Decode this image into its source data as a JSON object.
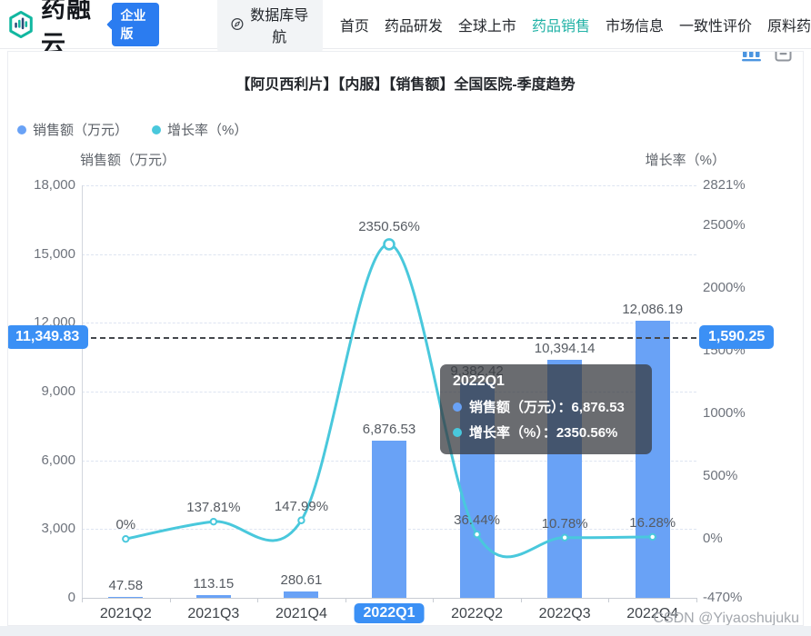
{
  "navbar": {
    "brand": "药融云",
    "badge": "企业版",
    "db_nav": "数据库导航",
    "items": [
      {
        "label": "首页",
        "active": false
      },
      {
        "label": "药品研发",
        "active": false
      },
      {
        "label": "全球上市",
        "active": false
      },
      {
        "label": "药品销售",
        "active": true
      },
      {
        "label": "市场信息",
        "active": false
      },
      {
        "label": "一致性评价",
        "active": false
      },
      {
        "label": "原料药",
        "active": false
      }
    ]
  },
  "chart": {
    "title": "【阿贝西利片】【内服】【销售额】全国医院-季度趋势",
    "legend": [
      {
        "label": "销售额（万元）",
        "color": "#69a2f6"
      },
      {
        "label": "增长率（%）",
        "color": "#49c8dc"
      }
    ]
  },
  "chart_data": {
    "type": "bar",
    "categories": [
      "2021Q2",
      "2021Q3",
      "2021Q4",
      "2022Q1",
      "2022Q2",
      "2022Q3",
      "2022Q4"
    ],
    "series": [
      {
        "name": "销售额（万元）",
        "type": "bar",
        "axis": "left",
        "color": "#69a2f6",
        "values": [
          47.58,
          113.15,
          280.61,
          6876.53,
          9382.42,
          10394.14,
          12086.19
        ],
        "labels": [
          "47.58",
          "113.15",
          "280.61",
          "6,876.53",
          "9,382.42",
          "10,394.14",
          "12,086.19"
        ]
      },
      {
        "name": "增长率（%）",
        "type": "line",
        "axis": "right",
        "color": "#49c8dc",
        "values": [
          0,
          137.81,
          147.99,
          2350.56,
          36.44,
          10.78,
          16.28
        ],
        "labels": [
          "0%",
          "137.81%",
          "147.99%",
          "2350.56%",
          "36.44%",
          "10.78%",
          "16.28%"
        ],
        "emphasized_index": 3
      }
    ],
    "left_axis": {
      "title": "销售额（万元）",
      "min": 0,
      "max": 18000,
      "ticks": [
        0,
        3000,
        6000,
        9000,
        12000,
        15000,
        18000
      ],
      "tick_labels": [
        "0",
        "3,000",
        "6,000",
        "9,000",
        "12,000",
        "15,000",
        "18,000"
      ]
    },
    "right_axis": {
      "title": "增长率（%）",
      "min": -470,
      "max": 2821,
      "ticks": [
        -470,
        0,
        500,
        1000,
        1500,
        2000,
        2500,
        2821
      ],
      "tick_labels": [
        "-470%",
        "0%",
        "500%",
        "1000%",
        "1500%",
        "2000%",
        "2500%",
        "2821%"
      ]
    },
    "mark_line": {
      "left_value": 11349.83,
      "left_label": "11,349.83",
      "right_label": "1,590.25"
    },
    "highlighted_category": "2022Q1",
    "grid": true,
    "legend_position": "top-left"
  },
  "tooltip": {
    "title": "2022Q1",
    "rows": [
      {
        "label": "销售额（万元）",
        "value": "6,876.53",
        "color": "#69a2f6"
      },
      {
        "label": "增长率（%）",
        "value": "2350.56%",
        "color": "#49c8dc"
      }
    ]
  },
  "watermark": "CSDN @Yiyaoshujuku"
}
